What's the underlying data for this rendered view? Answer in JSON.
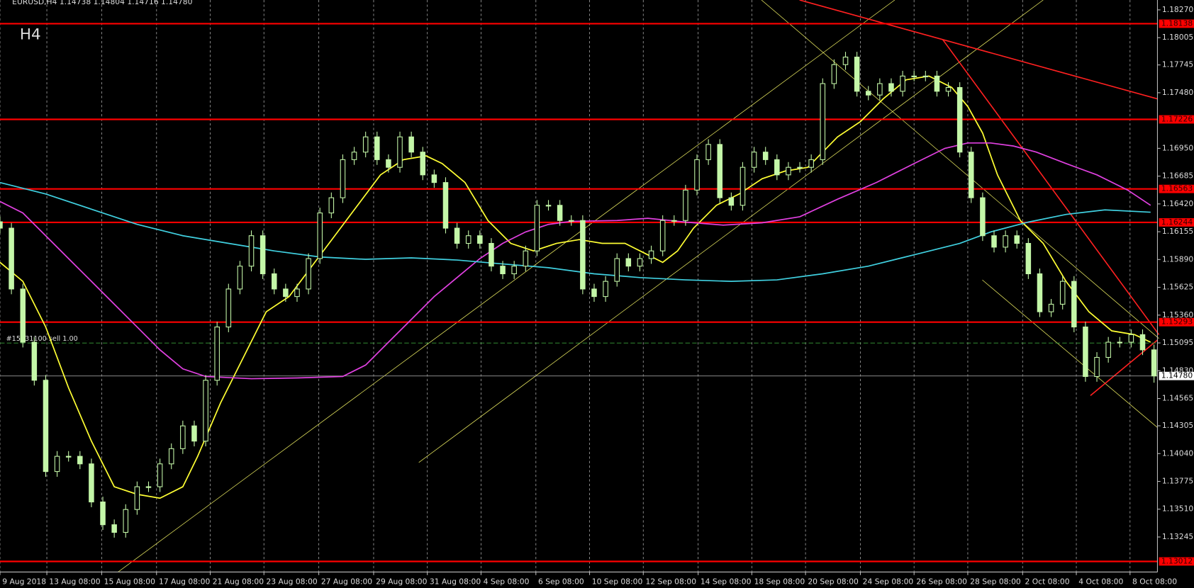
{
  "chart_data": {
    "type": "candlestick",
    "header": "EURUSD,H4  1.14738 1.14804 1.14716 1.14780",
    "timeframe": "H4",
    "candle_color": "#c4f7a8",
    "grid": true,
    "grid_color": "#9a9a9a",
    "open": [
      1.1625,
      1.16189,
      1.15609,
      1.15102,
      1.14739,
      1.13869,
      1.14014,
      1.14014,
      1.13942,
      1.13579,
      1.13362,
      1.13289,
      1.13507,
      1.13724,
      1.13724,
      1.13942,
      1.14087,
      1.14304,
      1.14159,
      1.14739,
      1.15247,
      1.15609,
      1.15827,
      1.16117,
      1.15754,
      1.15609,
      1.15537,
      1.15609,
      1.15899,
      1.16334,
      1.16479,
      1.16842,
      1.16914,
      1.17059,
      1.16842,
      1.16769,
      1.17059,
      1.16914,
      1.16697,
      1.16624,
      1.16189,
      1.16044,
      1.16117,
      1.16044,
      1.15827,
      1.15754,
      1.15827,
      1.15972,
      1.16407,
      1.16407,
      1.16262,
      1.16262,
      1.15609,
      1.15537,
      1.15682,
      1.15899,
      1.15827,
      1.15899,
      1.15972,
      1.16262,
      1.16262,
      1.16552,
      1.16842,
      1.16987,
      1.16479,
      1.16407,
      1.16769,
      1.16914,
      1.16842,
      1.16697,
      1.16769,
      1.16769,
      1.16842,
      1.17567,
      1.17748,
      1.1782,
      1.17494,
      1.17458,
      1.17567,
      1.17494,
      1.17639,
      1.17639,
      1.17639,
      1.17494,
      1.1753,
      1.16914,
      1.16479,
      1.16117,
      1.16008,
      1.16117,
      1.16044,
      1.15754,
      1.15392,
      1.15464,
      1.15682,
      1.15247,
      1.14775,
      1.14957,
      1.15102,
      1.15102,
      1.15174,
      1.15029
    ],
    "high": [
      1.163,
      1.16239,
      1.15659,
      1.15152,
      1.14789,
      1.14064,
      1.14064,
      1.14064,
      1.13992,
      1.13629,
      1.13412,
      1.13557,
      1.13774,
      1.13774,
      1.13992,
      1.14137,
      1.14354,
      1.14354,
      1.14789,
      1.15297,
      1.15659,
      1.15877,
      1.16167,
      1.16167,
      1.15804,
      1.15659,
      1.15659,
      1.15949,
      1.16384,
      1.16529,
      1.16892,
      1.16964,
      1.17109,
      1.17109,
      1.16892,
      1.17109,
      1.17109,
      1.16964,
      1.16747,
      1.16674,
      1.16239,
      1.16167,
      1.16167,
      1.16094,
      1.15877,
      1.15877,
      1.16022,
      1.16457,
      1.16457,
      1.16457,
      1.16312,
      1.16312,
      1.15659,
      1.15732,
      1.15949,
      1.15949,
      1.15949,
      1.16022,
      1.16312,
      1.16312,
      1.16602,
      1.16892,
      1.17037,
      1.17037,
      1.16529,
      1.16819,
      1.16964,
      1.16964,
      1.16892,
      1.16819,
      1.16819,
      1.16892,
      1.17617,
      1.17798,
      1.1787,
      1.1787,
      1.17544,
      1.17617,
      1.17617,
      1.17689,
      1.17689,
      1.17689,
      1.17689,
      1.1758,
      1.1758,
      1.16964,
      1.16529,
      1.16167,
      1.16167,
      1.16167,
      1.16094,
      1.15804,
      1.15514,
      1.15732,
      1.15732,
      1.15297,
      1.15007,
      1.15152,
      1.15152,
      1.15224,
      1.15224,
      1.15079
    ],
    "low": [
      1.16139,
      1.15559,
      1.15052,
      1.14689,
      1.13819,
      1.13819,
      1.13964,
      1.13892,
      1.13529,
      1.13312,
      1.13239,
      1.13239,
      1.13457,
      1.13674,
      1.13674,
      1.13892,
      1.14037,
      1.14109,
      1.14109,
      1.14689,
      1.15197,
      1.15559,
      1.15777,
      1.15704,
      1.15559,
      1.15487,
      1.15487,
      1.15559,
      1.15849,
      1.16284,
      1.16429,
      1.16792,
      1.16864,
      1.16792,
      1.16719,
      1.16719,
      1.16864,
      1.16647,
      1.16574,
      1.16139,
      1.15994,
      1.15994,
      1.15994,
      1.15777,
      1.15704,
      1.15704,
      1.15777,
      1.15922,
      1.16357,
      1.16212,
      1.16212,
      1.15559,
      1.15487,
      1.15487,
      1.15632,
      1.15777,
      1.15777,
      1.15849,
      1.15922,
      1.16212,
      1.16212,
      1.16502,
      1.16792,
      1.16429,
      1.16357,
      1.16357,
      1.16719,
      1.16792,
      1.16647,
      1.16647,
      1.16719,
      1.16719,
      1.16792,
      1.17517,
      1.17698,
      1.17444,
      1.17408,
      1.17408,
      1.17444,
      1.17444,
      1.17589,
      1.17589,
      1.17444,
      1.17444,
      1.16864,
      1.16429,
      1.16067,
      1.15958,
      1.15958,
      1.15994,
      1.15704,
      1.15342,
      1.15342,
      1.15414,
      1.15197,
      1.14725,
      1.14725,
      1.14907,
      1.15052,
      1.15052,
      1.14979,
      1.14716
    ],
    "close": [
      1.16189,
      1.15609,
      1.15102,
      1.14739,
      1.13869,
      1.14014,
      1.14014,
      1.13942,
      1.13579,
      1.13362,
      1.13289,
      1.13507,
      1.13724,
      1.13724,
      1.13942,
      1.14087,
      1.14304,
      1.14159,
      1.14739,
      1.15247,
      1.15609,
      1.15827,
      1.16117,
      1.15754,
      1.15609,
      1.15537,
      1.15609,
      1.15899,
      1.16334,
      1.16479,
      1.16842,
      1.16914,
      1.17059,
      1.16842,
      1.16769,
      1.17059,
      1.16914,
      1.16697,
      1.16624,
      1.16189,
      1.16044,
      1.16117,
      1.16044,
      1.15827,
      1.15754,
      1.15827,
      1.15972,
      1.16407,
      1.16407,
      1.16262,
      1.16262,
      1.15609,
      1.15537,
      1.15682,
      1.15899,
      1.15827,
      1.15899,
      1.15972,
      1.16262,
      1.16262,
      1.16552,
      1.16842,
      1.16987,
      1.16479,
      1.16407,
      1.16769,
      1.16914,
      1.16842,
      1.16697,
      1.16769,
      1.16769,
      1.16842,
      1.17567,
      1.17748,
      1.1782,
      1.17494,
      1.17458,
      1.17567,
      1.17494,
      1.17639,
      1.17639,
      1.17639,
      1.17494,
      1.1753,
      1.16914,
      1.16479,
      1.16117,
      1.16008,
      1.16117,
      1.16044,
      1.15754,
      1.15392,
      1.15464,
      1.15682,
      1.15247,
      1.14775,
      1.14957,
      1.15102,
      1.15102,
      1.15174,
      1.15029,
      1.1478
    ],
    "xlim": [
      0,
      101.3
    ],
    "xticks": [
      {
        "value": 0,
        "label": "9 Aug 2018"
      },
      {
        "value": 4.1,
        "label": "13 Aug 08:00"
      },
      {
        "value": 8.9,
        "label": "15 Aug 08:00"
      },
      {
        "value": 13.7,
        "label": "17 Aug 08:00"
      },
      {
        "value": 18.4,
        "label": "21 Aug 08:00"
      },
      {
        "value": 23.1,
        "label": "23 Aug 08:00"
      },
      {
        "value": 27.9,
        "label": "27 Aug 08:00"
      },
      {
        "value": 32.7,
        "label": "29 Aug 08:00"
      },
      {
        "value": 37.4,
        "label": "31 Aug 08:00"
      },
      {
        "value": 42.1,
        "label": "4 Sep 08:00"
      },
      {
        "value": 46.9,
        "label": "6 Sep 08:00"
      },
      {
        "value": 51.6,
        "label": "10 Sep 08:00"
      },
      {
        "value": 56.3,
        "label": "12 Sep 08:00"
      },
      {
        "value": 61.1,
        "label": "14 Sep 08:00"
      },
      {
        "value": 65.8,
        "label": "18 Sep 08:00"
      },
      {
        "value": 70.5,
        "label": "20 Sep 08:00"
      },
      {
        "value": 75.3,
        "label": "24 Sep 08:00"
      },
      {
        "value": 80,
        "label": "26 Sep 08:00"
      },
      {
        "value": 84.7,
        "label": "28 Sep 08:00"
      },
      {
        "value": 89.5,
        "label": "2 Oct 08:00"
      },
      {
        "value": 94.2,
        "label": "4 Oct 08:00"
      },
      {
        "value": 98.9,
        "label": "8 Oct 08:00"
      }
    ],
    "ylim": [
      1.12911,
      1.18364
    ],
    "yticks": [
      {
        "value": 1.1827,
        "label": "1.18270"
      },
      1.18005,
      1.17745,
      {
        "value": 1.1748,
        "label": "1.17480"
      },
      {
        "value": 1.1695,
        "label": "1.16950"
      },
      1.16685,
      {
        "value": 1.1642,
        "label": "1.16420"
      },
      1.16155,
      {
        "value": 1.1589,
        "label": "1.15890"
      },
      1.15625,
      {
        "value": 1.1536,
        "label": "1.15360"
      },
      1.15095,
      {
        "value": 1.1483,
        "label": "1.14830"
      },
      1.14565,
      1.14305,
      {
        "value": 1.1404,
        "label": "1.14040"
      },
      1.13775,
      {
        "value": 1.1351,
        "label": "1.13510"
      },
      1.13245
    ],
    "levels": [
      1.18138,
      1.17226,
      1.16563,
      1.16244,
      1.15293,
      1.13012
    ],
    "level_color": "#ff0000",
    "current_price": {
      "value": 1.1478,
      "label": "1.14780"
    },
    "order": {
      "value": 1.15094,
      "label": "#15931100 sell 1.00"
    },
    "overlays": [
      {
        "color": "#ffff33",
        "x": [
          0,
          2,
          4,
          6,
          8,
          10,
          12,
          14,
          16,
          17.3,
          19.3,
          21.3,
          23.3,
          25.3,
          27.3,
          29.3,
          31.3,
          33.3,
          35.3,
          37.3,
          38.7,
          40.7,
          42.7,
          44.7,
          46.7,
          48.7,
          50.7,
          52.7,
          54.7,
          56.7,
          58,
          59.3,
          60.7,
          62.7,
          64.7,
          66.7,
          68.7,
          70.7,
          72,
          73.3,
          75.3,
          77.3,
          79.3,
          81.3,
          83.3,
          84.7,
          86,
          87.3,
          89.3,
          91.3,
          93.3,
          95.3,
          97.3,
          99.3,
          100.7
        ],
        "values": [
          1.15863,
          1.15682,
          1.15247,
          1.14667,
          1.14159,
          1.13724,
          1.13652,
          1.13615,
          1.13724,
          1.14014,
          1.14522,
          1.14957,
          1.15392,
          1.15537,
          1.15827,
          1.16117,
          1.16407,
          1.16697,
          1.16842,
          1.16878,
          1.16805,
          1.16624,
          1.16262,
          1.16044,
          1.15972,
          1.16044,
          1.1608,
          1.16044,
          1.16044,
          1.15935,
          1.15863,
          1.15972,
          1.16189,
          1.16407,
          1.16515,
          1.1666,
          1.16733,
          1.16769,
          1.16914,
          1.17059,
          1.17204,
          1.17422,
          1.17603,
          1.17639,
          1.1753,
          1.17349,
          1.17095,
          1.16697,
          1.16262,
          1.16044,
          1.15682,
          1.15392,
          1.1521,
          1.15174,
          1.15102
        ]
      },
      {
        "color": "#e040e0",
        "x": [
          0,
          2,
          4,
          6,
          8,
          10,
          12,
          14,
          16,
          18,
          22,
          26,
          30,
          32,
          34,
          36,
          38,
          40,
          42,
          44,
          46,
          48,
          50,
          54,
          56.7,
          60,
          63.3,
          66.7,
          70,
          73.3,
          76.7,
          80,
          82.7,
          84.7,
          86.7,
          88.7,
          90.7,
          93.3,
          96,
          98.7,
          100.7
        ],
        "values": [
          1.16443,
          1.16334,
          1.16117,
          1.15899,
          1.15682,
          1.15464,
          1.15247,
          1.15029,
          1.14848,
          1.14775,
          1.14754,
          1.14761,
          1.14775,
          1.14884,
          1.15102,
          1.15319,
          1.15537,
          1.15718,
          1.15899,
          1.16044,
          1.16153,
          1.16225,
          1.16254,
          1.16262,
          1.16283,
          1.16247,
          1.16218,
          1.1624,
          1.16298,
          1.16465,
          1.16624,
          1.16805,
          1.1695,
          1.17001,
          1.17001,
          1.16972,
          1.16914,
          1.16805,
          1.16697,
          1.16552,
          1.16407
        ]
      },
      {
        "color": "#40d0e0",
        "x": [
          0,
          4,
          8,
          12,
          16,
          20,
          24,
          28,
          32,
          36,
          40,
          44,
          48,
          52,
          56,
          60,
          64,
          68,
          72,
          76,
          80,
          84,
          86.7,
          90,
          93.3,
          96.7,
          100.7
        ],
        "values": [
          1.16624,
          1.16515,
          1.1637,
          1.16225,
          1.16117,
          1.16044,
          1.15972,
          1.15914,
          1.15892,
          1.15906,
          1.15885,
          1.15848,
          1.15812,
          1.15754,
          1.15718,
          1.15696,
          1.15682,
          1.15696,
          1.15754,
          1.15827,
          1.15935,
          1.16044,
          1.16153,
          1.16247,
          1.1632,
          1.16363,
          1.16341
        ]
      }
    ]
  }
}
